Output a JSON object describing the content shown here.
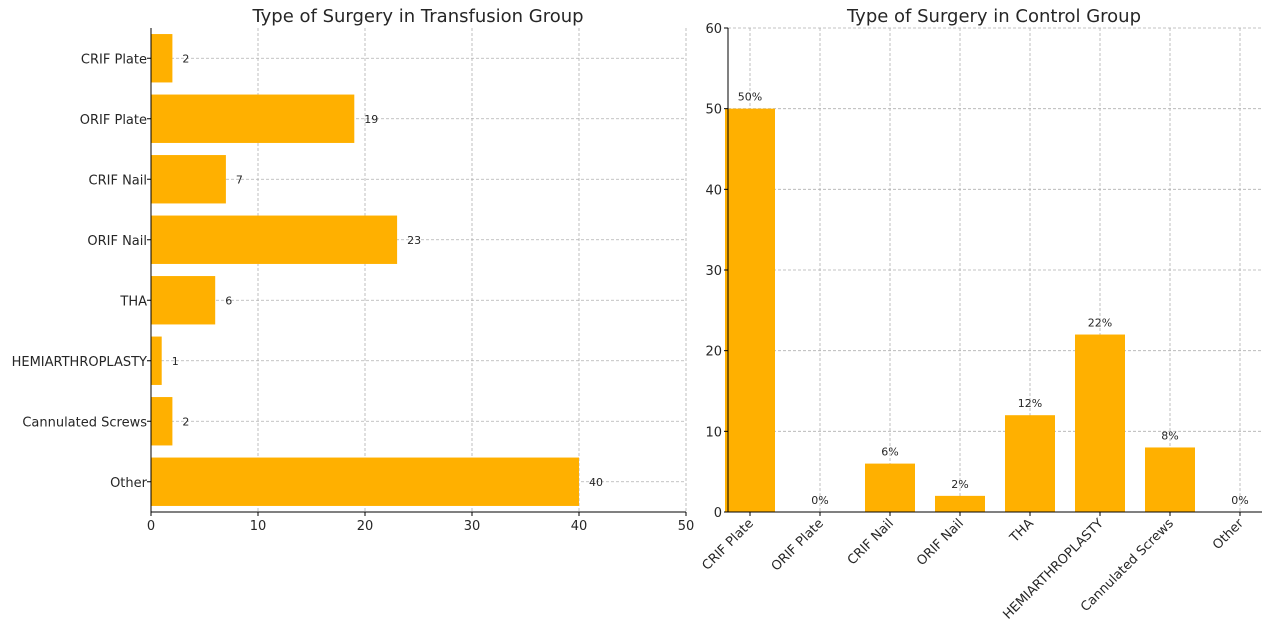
{
  "chart_data": [
    {
      "type": "bar",
      "orientation": "horizontal",
      "title": "Type of Surgery in Transfusion Group",
      "categories": [
        "CRIF Plate",
        "ORIF Plate",
        "CRIF Nail",
        "ORIF Nail",
        "THA",
        "HEMIARTHROPLASTY",
        "Cannulated Screws",
        "Other"
      ],
      "values": [
        2,
        19,
        7,
        23,
        6,
        1,
        2,
        40
      ],
      "data_labels": [
        "2",
        "19",
        "7",
        "23",
        "6",
        "1",
        "2",
        "40"
      ],
      "xlabel": "",
      "ylabel": "",
      "xlim": [
        0,
        50
      ],
      "xticks": [
        "0",
        "10",
        "20",
        "30",
        "40",
        "50"
      ],
      "grid": true,
      "color": "#FFB000"
    },
    {
      "type": "bar",
      "orientation": "vertical",
      "title": "Type of Surgery in Control Group",
      "categories": [
        "CRIF Plate",
        "ORIF Plate",
        "CRIF Nail",
        "ORIF Nail",
        "THA",
        "HEMIARTHROPLASTY",
        "Cannulated Screws",
        "Other"
      ],
      "values": [
        50,
        0,
        6,
        2,
        12,
        22,
        8,
        0
      ],
      "data_labels": [
        "50%",
        "0%",
        "6%",
        "2%",
        "12%",
        "22%",
        "8%",
        "0%"
      ],
      "xlabel": "",
      "ylabel": "",
      "ylim": [
        0,
        60
      ],
      "yticks": [
        "0",
        "10",
        "20",
        "30",
        "40",
        "50",
        "60"
      ],
      "grid": true,
      "color": "#FFB000"
    }
  ]
}
